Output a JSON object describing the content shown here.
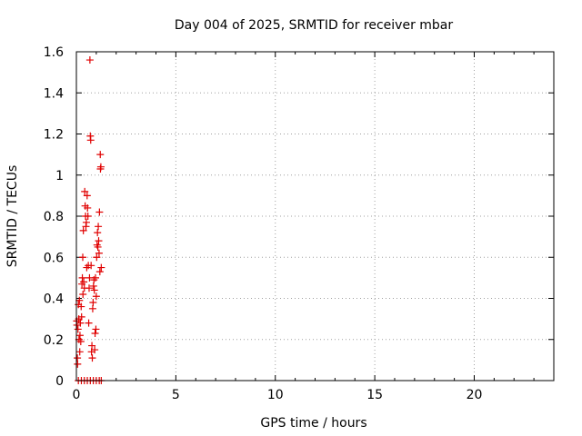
{
  "chart_data": {
    "type": "scatter",
    "title": "Day 004 of 2025, SRMTID for receiver mbar",
    "xlabel": "GPS time / hours",
    "ylabel": "SRMTID / TECUs",
    "xlim": [
      0,
      24
    ],
    "ylim": [
      0,
      1.6
    ],
    "x_ticks": [
      "0",
      "5",
      "10",
      "15",
      "20"
    ],
    "y_ticks": [
      "0",
      "0.2",
      "0.4",
      "0.6",
      "0.8",
      "1",
      "1.2",
      "1.4",
      "1.6"
    ],
    "grid": true,
    "marker": "plus",
    "point_color": "#e00000",
    "series": [
      {
        "points": [
          [
            0.02,
            0.29
          ],
          [
            0.03,
            0.27
          ],
          [
            0.05,
            0.11
          ],
          [
            0.06,
            0.08
          ],
          [
            0.08,
            0.25
          ],
          [
            0.1,
            0.37
          ],
          [
            0.12,
            0.3
          ],
          [
            0.13,
            0.2
          ],
          [
            0.15,
            0.39
          ],
          [
            0.17,
            0.14
          ],
          [
            0.18,
            0.22
          ],
          [
            0.2,
            0.28
          ],
          [
            0.22,
            0.19
          ],
          [
            0.24,
            0.36
          ],
          [
            0.26,
            0.31
          ],
          [
            0.28,
            0.47
          ],
          [
            0.3,
            0.5
          ],
          [
            0.32,
            0.6
          ],
          [
            0.33,
            0.42
          ],
          [
            0.35,
            0.73
          ],
          [
            0.37,
            0.48
          ],
          [
            0.4,
            0.45
          ],
          [
            0.42,
            0.92
          ],
          [
            0.44,
            0.85
          ],
          [
            0.46,
            0.8
          ],
          [
            0.48,
            0.75
          ],
          [
            0.5,
            0.77
          ],
          [
            0.52,
            0.55
          ],
          [
            0.54,
            0.9
          ],
          [
            0.56,
            0.84
          ],
          [
            0.58,
            0.8
          ],
          [
            0.6,
            0.56
          ],
          [
            0.62,
            0.28
          ],
          [
            0.64,
            0.45
          ],
          [
            0.66,
            0.5
          ],
          [
            0.68,
            1.56
          ],
          [
            0.7,
            1.19
          ],
          [
            0.72,
            1.17
          ],
          [
            0.74,
            0.56
          ],
          [
            0.76,
            0.14
          ],
          [
            0.78,
            0.17
          ],
          [
            0.8,
            0.11
          ],
          [
            0.82,
            0.35
          ],
          [
            0.84,
            0.38
          ],
          [
            0.86,
            0.46
          ],
          [
            0.88,
            0.49
          ],
          [
            0.9,
            0.44
          ],
          [
            0.92,
            0.15
          ],
          [
            0.94,
            0.23
          ],
          [
            0.96,
            0.5
          ],
          [
            0.98,
            0.25
          ],
          [
            1.0,
            0.41
          ],
          [
            1.02,
            0.6
          ],
          [
            1.04,
            0.66
          ],
          [
            1.06,
            0.72
          ],
          [
            1.08,
            0.65
          ],
          [
            1.1,
            0.75
          ],
          [
            1.12,
            0.68
          ],
          [
            1.14,
            0.62
          ],
          [
            1.16,
            0.82
          ],
          [
            1.18,
            0.53
          ],
          [
            1.2,
            1.1
          ],
          [
            1.21,
            1.03
          ],
          [
            1.23,
            1.04
          ],
          [
            1.25,
            0.55
          ],
          [
            0.1,
            0.0
          ],
          [
            0.25,
            0.0
          ],
          [
            0.4,
            0.0
          ],
          [
            0.55,
            0.0
          ],
          [
            0.7,
            0.0
          ],
          [
            0.85,
            0.0
          ],
          [
            1.0,
            0.0
          ],
          [
            1.15,
            0.0
          ],
          [
            1.25,
            0.0
          ]
        ]
      }
    ]
  }
}
